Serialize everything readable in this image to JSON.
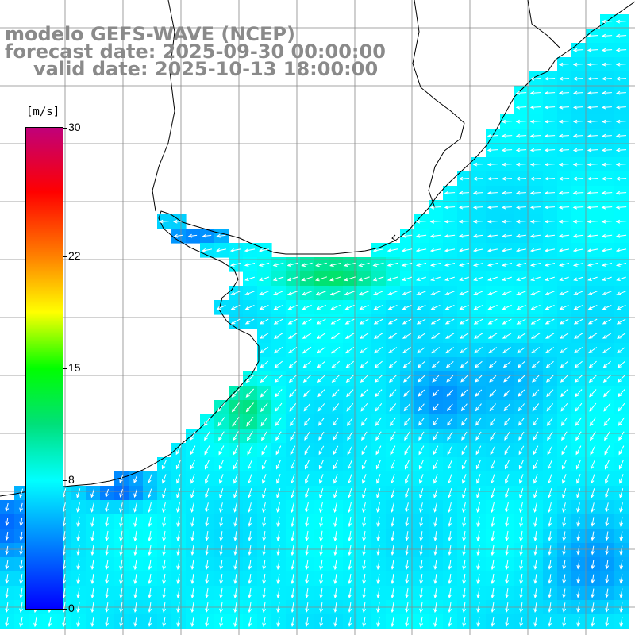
{
  "header": {
    "model_line": "modelo GEFS-WAVE (NCEP)",
    "forecast_line": "forecast date: 2025-09-30 00:00:00",
    "valid_line": "valid date: 2025-10-13 18:00:00"
  },
  "colorbar": {
    "unit": "[m/s]",
    "ticks": [
      {
        "value": 30,
        "label": "30"
      },
      {
        "value": 22,
        "label": "22"
      },
      {
        "value": 15,
        "label": "15"
      },
      {
        "value": 8,
        "label": "8"
      },
      {
        "value": 0,
        "label": "0"
      }
    ],
    "stops": [
      {
        "value": 0,
        "color": "#0000ff"
      },
      {
        "value": 4,
        "color": "#0080ff"
      },
      {
        "value": 8,
        "color": "#00ffff"
      },
      {
        "value": 11.5,
        "color": "#00e07a"
      },
      {
        "value": 15,
        "color": "#00ff00"
      },
      {
        "value": 18.5,
        "color": "#ffff00"
      },
      {
        "value": 22,
        "color": "#ff8000"
      },
      {
        "value": 26,
        "color": "#ff0000"
      },
      {
        "value": 30,
        "color": "#c0007a"
      }
    ]
  },
  "colors": {
    "land": "#ffffff",
    "grid": "#888888",
    "coast": "#000000",
    "arrow": "#ffffff"
  }
}
